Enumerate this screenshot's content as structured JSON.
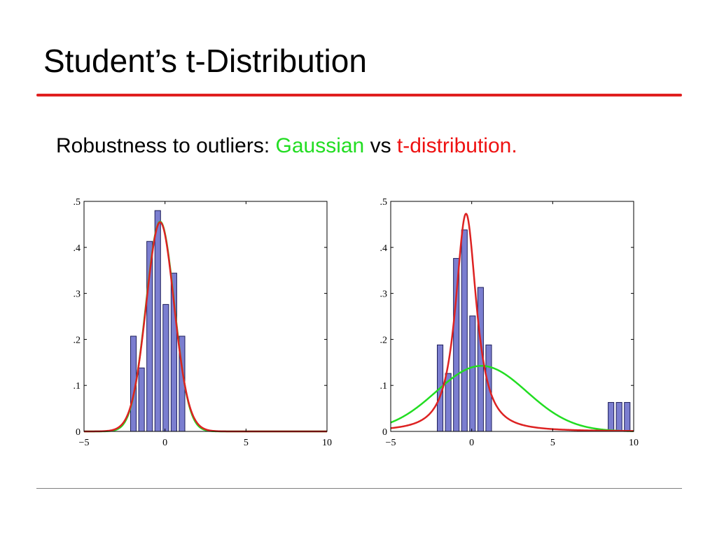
{
  "slide": {
    "title": "Student’s t-Distribution",
    "subtitle_prefix": "Robustness to outliers: ",
    "subtitle_gaussian": "Gaussian",
    "subtitle_vs": " vs ",
    "subtitle_tdist": "t-distribution."
  },
  "colors": {
    "bar_fill": "#7b7ed0",
    "bar_stroke": "#1e1e5a",
    "gaussian": "#22dd22",
    "t_distribution": "#dd2222",
    "title_rule": "#e02020"
  },
  "chart_data": [
    {
      "type": "bar",
      "title": "",
      "xlabel": "",
      "ylabel": "",
      "xlim": [
        -5,
        10
      ],
      "ylim": [
        0,
        0.5
      ],
      "xticks": [
        -5,
        0,
        5,
        10
      ],
      "yticks": [
        0,
        0.1,
        0.2,
        0.3,
        0.4,
        0.5
      ],
      "grid": false,
      "legend": "none",
      "bar_width": 0.35,
      "histogram": {
        "x": [
          -1.95,
          -1.45,
          -0.95,
          -0.45,
          0.05,
          0.55,
          1.05
        ],
        "values": [
          0.207,
          0.138,
          0.413,
          0.48,
          0.276,
          0.344,
          0.207
        ]
      },
      "curves": [
        {
          "kind": "gaussian",
          "color_key": "gaussian",
          "mu": -0.3,
          "sigma": 0.875
        },
        {
          "kind": "t",
          "color_key": "t_distribution",
          "mu": -0.3,
          "sigma": 0.87,
          "nu": 30
        }
      ]
    },
    {
      "type": "bar",
      "title": "",
      "xlabel": "",
      "ylabel": "",
      "xlim": [
        -5,
        10
      ],
      "ylim": [
        0,
        0.5
      ],
      "xticks": [
        -5,
        0,
        5,
        10
      ],
      "yticks": [
        0,
        0.1,
        0.2,
        0.3,
        0.4,
        0.5
      ],
      "grid": false,
      "legend": "none",
      "bar_width": 0.35,
      "histogram": {
        "x": [
          -1.95,
          -1.45,
          -0.95,
          -0.45,
          0.05,
          0.55,
          1.05,
          8.6,
          9.1,
          9.6
        ],
        "values": [
          0.188,
          0.126,
          0.376,
          0.438,
          0.251,
          0.313,
          0.188,
          0.063,
          0.063,
          0.063
        ]
      },
      "curves": [
        {
          "kind": "gaussian",
          "color_key": "gaussian",
          "mu": 0.6,
          "sigma": 2.8
        },
        {
          "kind": "t",
          "color_key": "t_distribution",
          "mu": -0.35,
          "sigma": 0.72,
          "nu": 1.5
        }
      ]
    }
  ]
}
